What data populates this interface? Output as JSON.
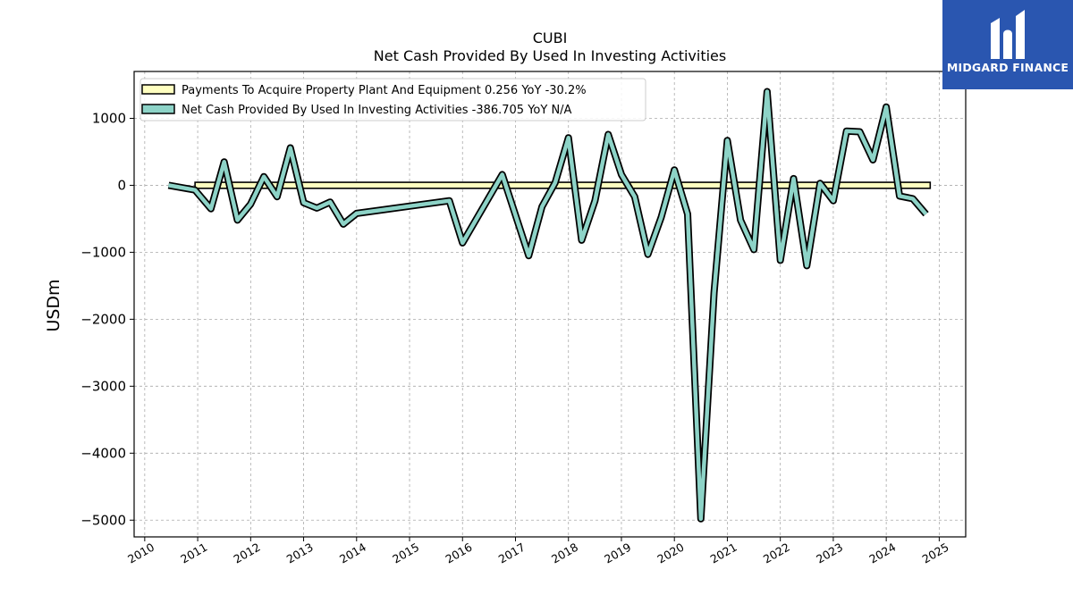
{
  "brand": {
    "name": "MIDGARD FINANCE",
    "logo_icon": "midgard-logo-icon",
    "color": "#2a56b0"
  },
  "chart_data": {
    "type": "line",
    "title": "CUBI",
    "subtitle": "Net Cash Provided By Used In Investing Activities",
    "ylabel": "USDm",
    "xlabel": "",
    "ylim": [
      -5250,
      1700
    ],
    "xlim": [
      2009.8,
      2025.5
    ],
    "yticks": [
      1000,
      0,
      -1000,
      -2000,
      -3000,
      -4000,
      -5000
    ],
    "ytick_labels": [
      "1000",
      "0",
      "−1000",
      "−2000",
      "−3000",
      "−4000",
      "−5000"
    ],
    "xticks": [
      2010,
      2011,
      2012,
      2013,
      2014,
      2015,
      2016,
      2017,
      2018,
      2019,
      2020,
      2021,
      2022,
      2023,
      2024,
      2025
    ],
    "grid": true,
    "legend_position": "top-left",
    "series": [
      {
        "name": "Payments To Acquire Property Plant And Equipment",
        "legend_label": "Payments To Acquire Property Plant And Equipment  0.256 YoY -30.2%",
        "color": "#ffffc0",
        "style": "band",
        "x": [
          2010.95,
          2024.83
        ],
        "y_top": [
          45,
          45
        ],
        "y_bottom": [
          -45,
          -45
        ]
      },
      {
        "name": "Net Cash Provided By Used In Investing Activities",
        "legend_label": "Net Cash Provided By Used In Investing Activities  -386.705 YoY N/A",
        "color": "#8dd3c7",
        "style": "line",
        "x": [
          2010.45,
          2010.95,
          2011.25,
          2011.5,
          2011.75,
          2012.0,
          2012.25,
          2012.5,
          2012.75,
          2013.0,
          2013.25,
          2013.5,
          2013.75,
          2014.0,
          2015.75,
          2016.0,
          2016.75,
          2017.25,
          2017.5,
          2017.75,
          2018.0,
          2018.25,
          2018.5,
          2018.75,
          2019.0,
          2019.25,
          2019.5,
          2019.75,
          2020.0,
          2020.25,
          2020.5,
          2020.75,
          2021.0,
          2021.25,
          2021.5,
          2021.75,
          2022.0,
          2022.25,
          2022.5,
          2022.75,
          2023.0,
          2023.25,
          2023.5,
          2023.75,
          2024.0,
          2024.25,
          2024.5,
          2024.75
        ],
        "y": [
          0,
          -70,
          -350,
          350,
          -520,
          -280,
          130,
          -170,
          560,
          -260,
          -340,
          -250,
          -580,
          -420,
          -230,
          -860,
          160,
          -1050,
          -320,
          40,
          710,
          -820,
          -230,
          760,
          160,
          -170,
          -1030,
          -480,
          230,
          -430,
          -4980,
          -1600,
          670,
          -520,
          -960,
          1400,
          -1120,
          100,
          -1200,
          30,
          -230,
          810,
          800,
          380,
          1170,
          -160,
          -200,
          -430
        ]
      }
    ]
  }
}
